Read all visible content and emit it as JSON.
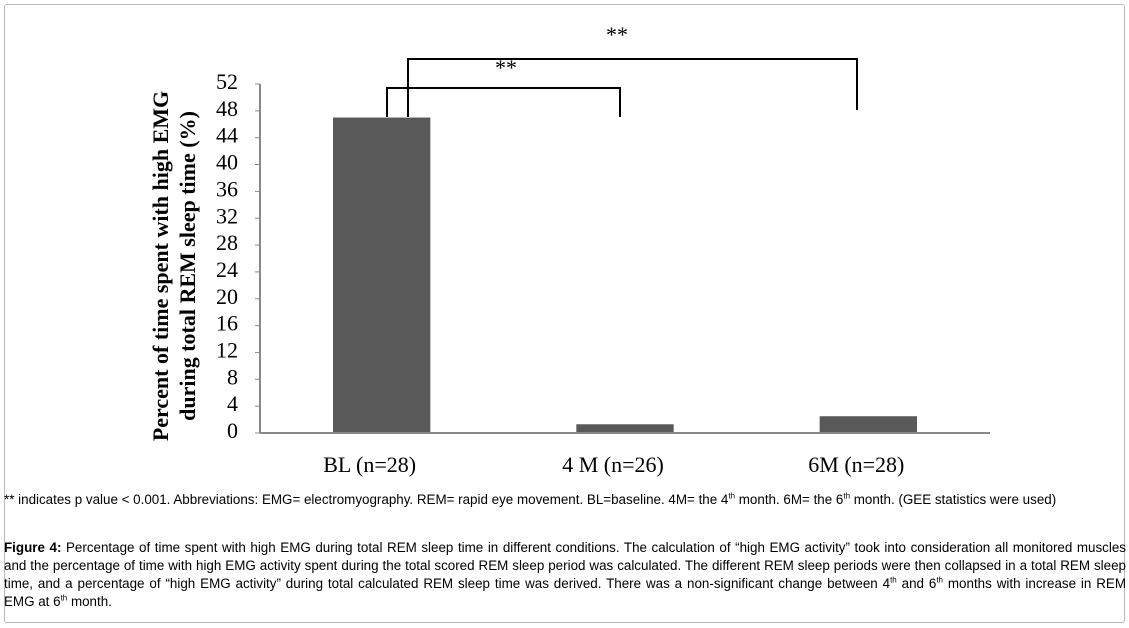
{
  "chart_data": {
    "type": "bar",
    "ylabel": [
      "Percent of time spent with high EMG",
      "during total REM sleep time (%)"
    ],
    "categories": [
      "BL (n=28)",
      "4 M (n=26)",
      "6M (n=28)"
    ],
    "values": [
      47,
      1.3,
      2.5
    ],
    "color": "#595959",
    "ylim": [
      0,
      52
    ],
    "yticks": [
      0,
      4,
      8,
      12,
      16,
      20,
      24,
      28,
      32,
      36,
      40,
      44,
      48,
      52
    ],
    "annotations": [
      "**",
      "**"
    ]
  },
  "footnote": [
    "** indicates p value < 0.001. Abbreviations: EMG= electromyography. REM= rapid eye movement. BL=baseline. 4M= the 4",
    "th",
    " month. 6M= the 6",
    "th",
    " month. (GEE statistics were used)"
  ],
  "caption": {
    "label": "Figure 4:",
    "text": [
      " Percentage of time spent with high EMG during total REM sleep time in different conditions. The calculation of “high EMG activity” took into consideration all monitored muscles and the percentage of time with high EMG activity spent during the total scored REM sleep period was calculated. The different REM sleep periods were then collapsed in a total REM sleep time, and a percentage of “high EMG activity” during total calculated REM sleep time was derived. There was a non-significant change between 4",
      "th",
      " and 6",
      "th",
      " months with increase in REM EMG at 6",
      "th",
      " month."
    ]
  }
}
